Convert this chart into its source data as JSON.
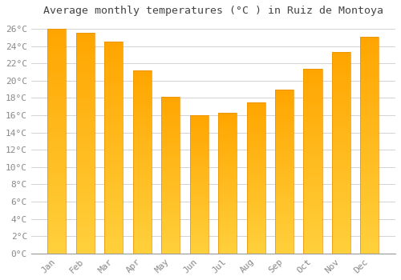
{
  "title": "Average monthly temperatures (°C ) in Ruiz de Montoya",
  "months": [
    "Jan",
    "Feb",
    "Mar",
    "Apr",
    "May",
    "Jun",
    "Jul",
    "Aug",
    "Sep",
    "Oct",
    "Nov",
    "Dec"
  ],
  "values": [
    26.0,
    25.5,
    24.5,
    21.2,
    18.1,
    16.0,
    16.3,
    17.5,
    19.0,
    21.4,
    23.3,
    25.1
  ],
  "bar_color_top": "#FFA500",
  "bar_color_bottom": "#FFD060",
  "bar_edge_color": "#E89000",
  "background_color": "#FFFFFF",
  "grid_color": "#CCCCCC",
  "tick_label_color": "#888888",
  "title_color": "#444444",
  "ylim": [
    0,
    27
  ],
  "yticks": [
    0,
    2,
    4,
    6,
    8,
    10,
    12,
    14,
    16,
    18,
    20,
    22,
    24,
    26
  ],
  "title_fontsize": 9.5,
  "tick_fontsize": 8,
  "bar_width": 0.65
}
